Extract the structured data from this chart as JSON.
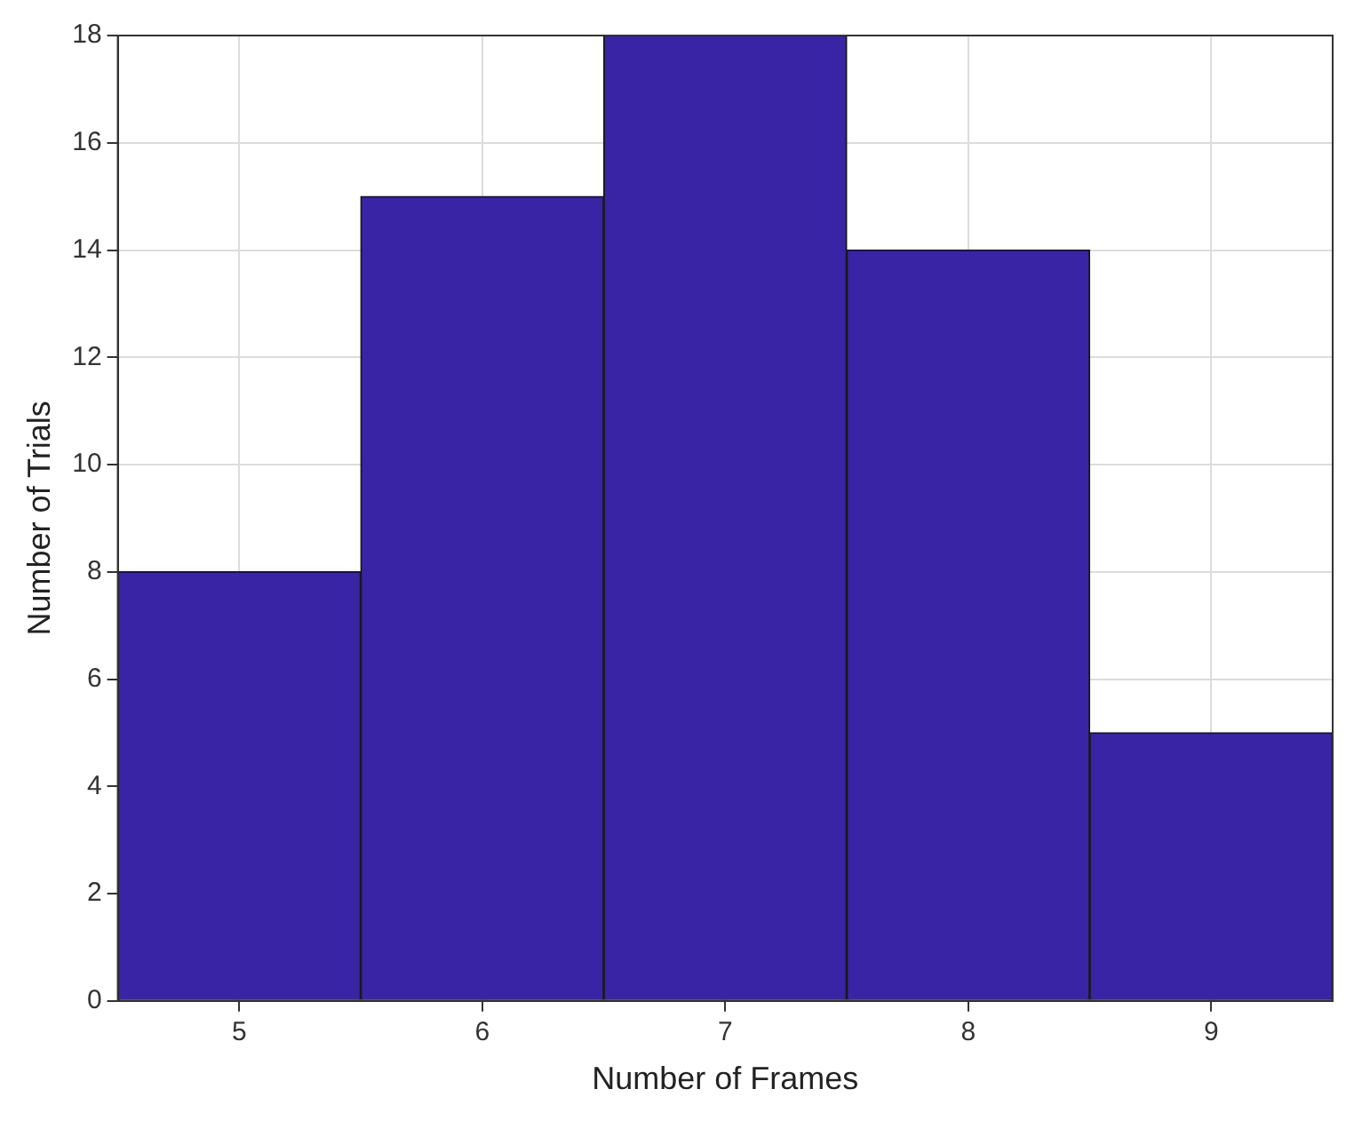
{
  "chart_data": {
    "type": "bar",
    "xlabel": "Number of Frames",
    "ylabel": "Number of Trials",
    "categories": [
      "5",
      "6",
      "7",
      "8",
      "9"
    ],
    "values": [
      8,
      15,
      18,
      14,
      5
    ],
    "color": "#3a24a6",
    "ylim": [
      0,
      18
    ],
    "yticks": [
      0,
      2,
      4,
      6,
      8,
      10,
      12,
      14,
      16,
      18
    ],
    "grid": true
  }
}
